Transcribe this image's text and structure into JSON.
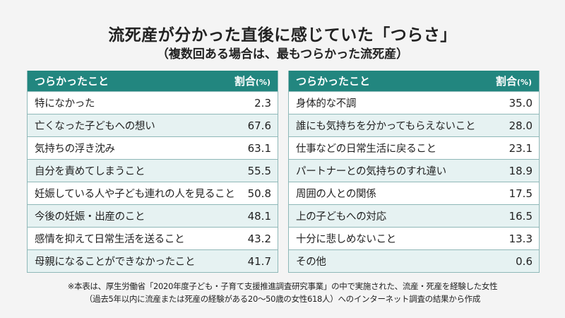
{
  "title": "流死産が分かった直後に感じていた「つらさ」",
  "subtitle": "（複数回ある場合は、最もつらかった流死産）",
  "colors": {
    "header_bg": "#22867f",
    "alt_row_bg": "#e6f2f2",
    "border": "#8fb8b8",
    "page_bg": "#f4f4f4"
  },
  "tables": {
    "left": {
      "header_label": "つらかったこと",
      "header_value": "割合",
      "header_unit": "(%)",
      "rows": [
        {
          "label": "特になかった",
          "value": "2.3"
        },
        {
          "label": "亡くなった子どもへの想い",
          "value": "67.6"
        },
        {
          "label": "気持ちの浮き沈み",
          "value": "63.1"
        },
        {
          "label": "自分を責めてしまうこと",
          "value": "55.5"
        },
        {
          "label": "妊娠している人や子ども連れの人を見ること",
          "value": "50.8"
        },
        {
          "label": "今後の妊娠・出産のこと",
          "value": "48.1"
        },
        {
          "label": "感情を抑えて日常生活を送ること",
          "value": "43.2"
        },
        {
          "label": "母親になることができなかったこと",
          "value": "41.7"
        }
      ]
    },
    "right": {
      "header_label": "つらかったこと",
      "header_value": "割合",
      "header_unit": "(%)",
      "rows": [
        {
          "label": "身体的な不調",
          "value": "35.0"
        },
        {
          "label": "誰にも気持ちを分かってもらえないこと",
          "value": "28.0"
        },
        {
          "label": "仕事などの日常生活に戻ること",
          "value": "23.1"
        },
        {
          "label": "パートナーとの気持ちのすれ違い",
          "value": "18.9"
        },
        {
          "label": "周囲の人との関係",
          "value": "17.5"
        },
        {
          "label": "上の子どもへの対応",
          "value": "16.5"
        },
        {
          "label": "十分に悲しめないこと",
          "value": "13.3"
        },
        {
          "label": "その他",
          "value": "0.6"
        }
      ]
    }
  },
  "notes": [
    "※本表は、厚生労働省「2020年度子ども・子育て支援推進調査研究事業」の中で実施された、流産・死産を経験した女性",
    "（過去5年以内に流産または死産の経験がある20～50歳の女性618人）へのインターネット調査の結果から作成"
  ]
}
